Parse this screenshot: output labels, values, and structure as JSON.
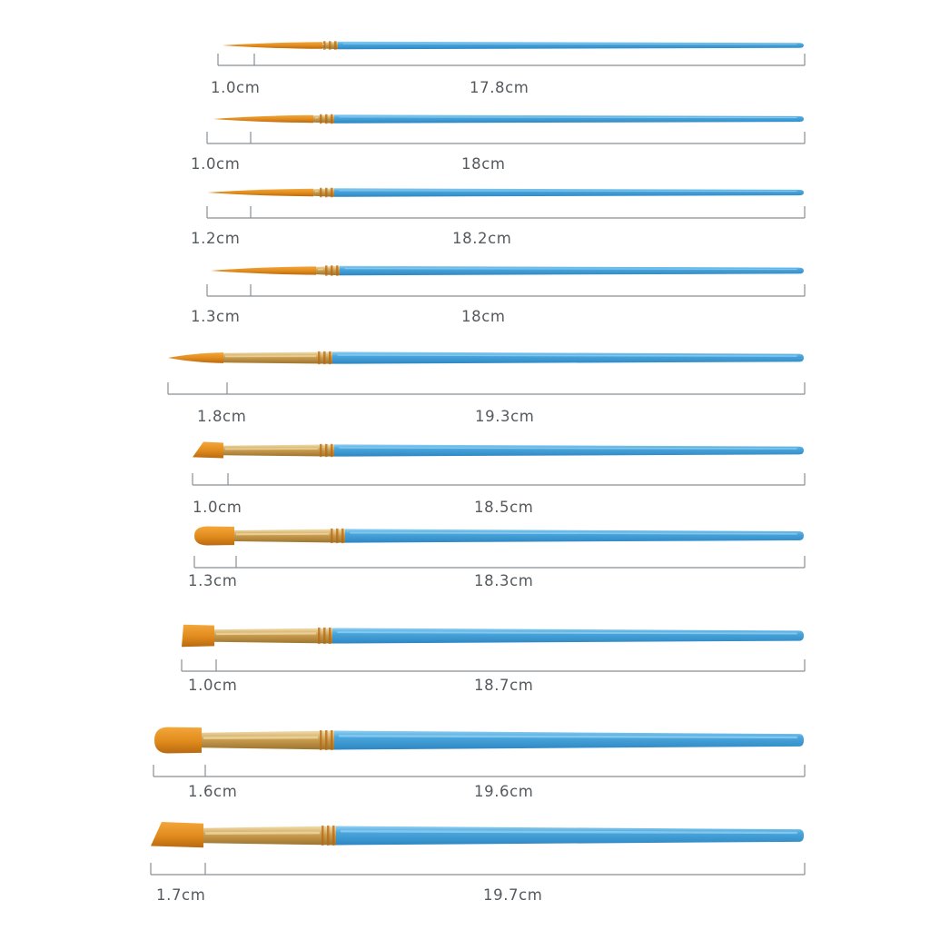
{
  "brushes": [
    {
      "head": "round",
      "head_length": "1.0cm",
      "total_length": "17.8cm"
    },
    {
      "head": "round",
      "head_length": "1.0cm",
      "total_length": "18cm"
    },
    {
      "head": "round",
      "head_length": "1.2cm",
      "total_length": "18.2cm"
    },
    {
      "head": "round",
      "head_length": "1.3cm",
      "total_length": "18cm"
    },
    {
      "head": "round",
      "head_length": "1.8cm",
      "total_length": "19.3cm"
    },
    {
      "head": "angular",
      "head_length": "1.0cm",
      "total_length": "18.5cm"
    },
    {
      "head": "filbert",
      "head_length": "1.3cm",
      "total_length": "18.3cm"
    },
    {
      "head": "flat",
      "head_length": "1.0cm",
      "total_length": "18.7cm"
    },
    {
      "head": "filbert",
      "head_length": "1.6cm",
      "total_length": "19.6cm"
    },
    {
      "head": "angular",
      "head_length": "1.7cm",
      "total_length": "19.7cm"
    }
  ],
  "colors": {
    "handle": "#4aa6dc",
    "handle_highlight": "#8fcff2",
    "bristle": "#e08a1c",
    "bristle_dark": "#b86a12",
    "ferrule": "#c79a4c",
    "ferrule_light": "#ecd39a",
    "measure_line": "#8a8f94",
    "label_text": "#555a5e",
    "background": "#ffffff"
  }
}
